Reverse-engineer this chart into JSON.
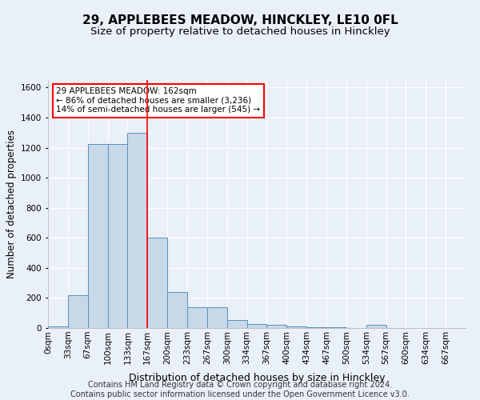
{
  "title": "29, APPLEBEES MEADOW, HINCKLEY, LE10 0FL",
  "subtitle": "Size of property relative to detached houses in Hinckley",
  "xlabel": "Distribution of detached houses by size in Hinckley",
  "ylabel": "Number of detached properties",
  "footer_line1": "Contains HM Land Registry data © Crown copyright and database right 2024.",
  "footer_line2": "Contains public sector information licensed under the Open Government Licence v3.0.",
  "bin_labels": [
    "0sqm",
    "33sqm",
    "67sqm",
    "100sqm",
    "133sqm",
    "167sqm",
    "200sqm",
    "233sqm",
    "267sqm",
    "300sqm",
    "334sqm",
    "367sqm",
    "400sqm",
    "434sqm",
    "467sqm",
    "500sqm",
    "534sqm",
    "567sqm",
    "600sqm",
    "634sqm",
    "667sqm"
  ],
  "bar_heights": [
    10,
    220,
    1225,
    1225,
    1300,
    600,
    240,
    140,
    140,
    55,
    25,
    22,
    10,
    5,
    5,
    0,
    20,
    0,
    0,
    0,
    0
  ],
  "bar_color": "#c8d8e8",
  "bar_edgecolor": "#5590bb",
  "ylim": [
    0,
    1650
  ],
  "yticks": [
    0,
    200,
    400,
    600,
    800,
    1000,
    1200,
    1400,
    1600
  ],
  "red_line_x": 5.0,
  "annotation_line1": "29 APPLEBEES MEADOW: 162sqm",
  "annotation_line2": "← 86% of detached houses are smaller (3,236)",
  "annotation_line3": "14% of semi-detached houses are larger (545) →",
  "background_color": "#eaf0f8",
  "grid_color": "#ffffff",
  "title_fontsize": 11,
  "subtitle_fontsize": 9.5,
  "axis_label_fontsize": 8.5,
  "tick_fontsize": 7.5,
  "footer_fontsize": 7
}
